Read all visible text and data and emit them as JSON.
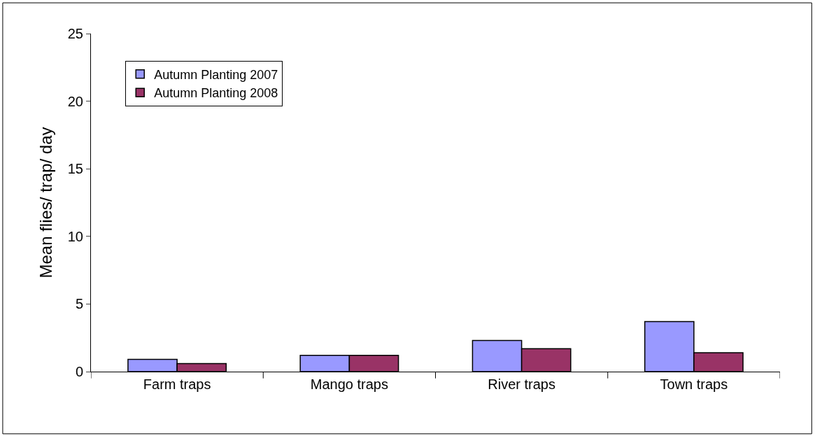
{
  "chart_data": {
    "type": "bar",
    "ylabel": "Mean flies/ trap/ day",
    "categories": [
      "Farm traps",
      "Mango traps",
      "River traps",
      "Town traps"
    ],
    "series": [
      {
        "name": "Autumn Planting 2007",
        "color": "#9999ff",
        "values": [
          0.9,
          1.2,
          2.3,
          3.7
        ]
      },
      {
        "name": "Autumn Planting 2008",
        "color": "#993366",
        "values": [
          0.6,
          1.2,
          1.7,
          1.4
        ]
      }
    ],
    "ylim": [
      0,
      25
    ],
    "yticks": [
      0,
      5,
      10,
      15,
      20,
      25
    ],
    "legend": "top left"
  }
}
